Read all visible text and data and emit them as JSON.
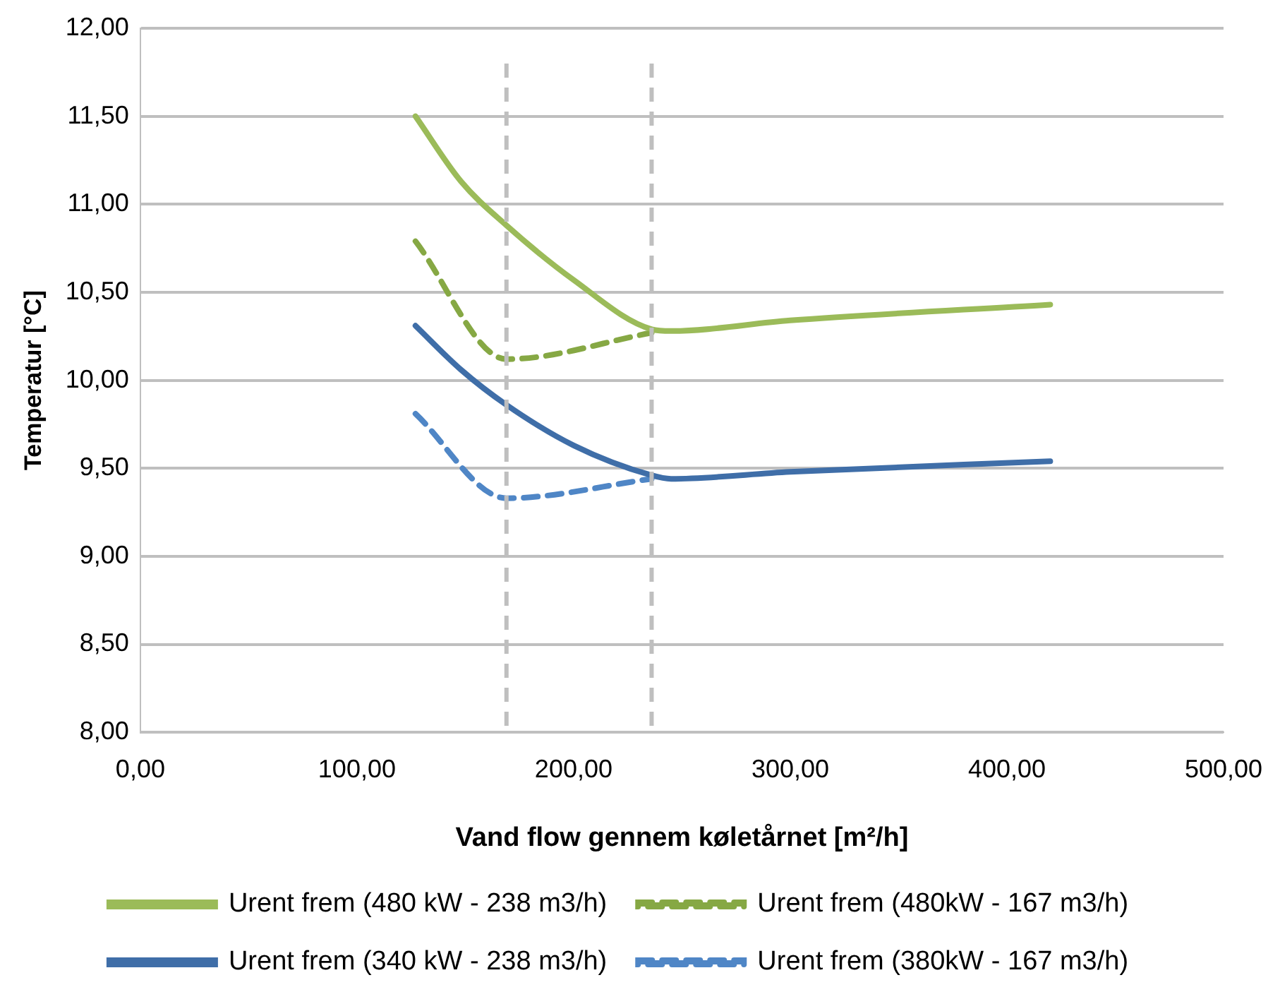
{
  "chart_data": {
    "type": "line",
    "xlabel": "Vand flow gennem køletårnet [m²/h]",
    "ylabel": "Temperatur [°C]",
    "xlim": [
      0,
      500
    ],
    "xticks": [
      {
        "value": 0,
        "label": "0,00"
      },
      {
        "value": 100,
        "label": "100,00"
      },
      {
        "value": 200,
        "label": "200,00"
      },
      {
        "value": 300,
        "label": "300,00"
      },
      {
        "value": 400,
        "label": "400,00"
      },
      {
        "value": 500,
        "label": "500,00"
      }
    ],
    "ylim": [
      8,
      12
    ],
    "yticks": [
      {
        "value": 8,
        "label": "8,00"
      },
      {
        "value": 8.5,
        "label": "8,50"
      },
      {
        "value": 9,
        "label": "9,00"
      },
      {
        "value": 9.5,
        "label": "9,50"
      },
      {
        "value": 10,
        "label": "10,00"
      },
      {
        "value": 10.5,
        "label": "10,50"
      },
      {
        "value": 11,
        "label": "11,00"
      },
      {
        "value": 11.5,
        "label": "11,50"
      },
      {
        "value": 12,
        "label": "12,00"
      }
    ],
    "grid": "y",
    "legend": "bottom",
    "marker": "none",
    "series": [
      {
        "name": "Urent frem (480 kW - 238 m3/h)",
        "color": "#9bbb59",
        "line_style": "solid",
        "x": [
          127,
          148,
          169,
          200,
          236,
          245,
          300,
          420
        ],
        "values": [
          11.5,
          11.13,
          10.88,
          10.57,
          10.29,
          10.28,
          10.34,
          10.43
        ]
      },
      {
        "name": "Urent frem (480kW - 167 m3/h)",
        "color": "#86a844",
        "line_style": "dashed",
        "x": [
          127,
          169,
          236
        ],
        "values": [
          10.79,
          10.12,
          10.27
        ]
      },
      {
        "name": "Urent frem (340 kW - 238 m3/h)",
        "color": "#3f6ea8",
        "line_style": "solid",
        "x": [
          127,
          148,
          169,
          200,
          236,
          245,
          300,
          420
        ],
        "values": [
          10.31,
          10.06,
          9.86,
          9.63,
          9.46,
          9.44,
          9.48,
          9.54
        ]
      },
      {
        "name": "Urent frem (380kW - 167 m3/h)",
        "color": "#4f86c6",
        "line_style": "dashed",
        "x": [
          127,
          169,
          236
        ],
        "values": [
          9.81,
          9.33,
          9.44
        ]
      }
    ],
    "ref_lines": [
      {
        "axis": "x",
        "value": 169,
        "label": null,
        "color": "#bfbfbf",
        "line_style": "dashed"
      },
      {
        "axis": "x",
        "value": 236,
        "label": null,
        "color": "#bfbfbf",
        "line_style": "dashed"
      }
    ]
  }
}
